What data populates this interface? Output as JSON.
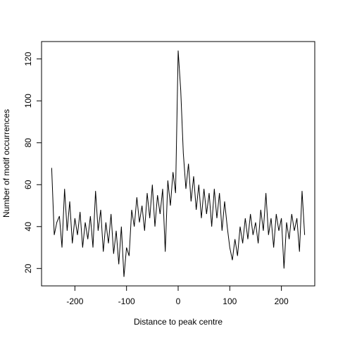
{
  "chart_data": {
    "type": "line",
    "x_label": "Distance to peak centre",
    "y_label": "Number of motif occurrences",
    "x": [
      -245,
      -240,
      -235,
      -230,
      -225,
      -220,
      -215,
      -210,
      -205,
      -200,
      -195,
      -190,
      -185,
      -180,
      -175,
      -170,
      -165,
      -160,
      -155,
      -150,
      -145,
      -140,
      -135,
      -130,
      -125,
      -120,
      -115,
      -110,
      -105,
      -100,
      -95,
      -90,
      -85,
      -80,
      -75,
      -70,
      -65,
      -60,
      -55,
      -50,
      -45,
      -40,
      -35,
      -30,
      -25,
      -20,
      -15,
      -10,
      -5,
      0,
      5,
      10,
      15,
      20,
      25,
      30,
      35,
      40,
      45,
      50,
      55,
      60,
      65,
      70,
      75,
      80,
      85,
      90,
      95,
      100,
      105,
      110,
      115,
      120,
      125,
      130,
      135,
      140,
      145,
      150,
      155,
      160,
      165,
      170,
      175,
      180,
      185,
      190,
      195,
      200,
      205,
      210,
      215,
      220,
      225,
      230,
      235,
      240,
      245
    ],
    "series": [
      {
        "color": "#000000",
        "values": [
          68,
          36,
          42,
          45,
          30,
          58,
          38,
          52,
          32,
          44,
          36,
          47,
          30,
          42,
          34,
          45,
          30,
          57,
          38,
          48,
          28,
          42,
          32,
          46,
          27,
          38,
          22,
          40,
          16,
          30,
          26,
          48,
          40,
          54,
          42,
          50,
          38,
          56,
          44,
          60,
          40,
          55,
          46,
          58,
          28,
          62,
          50,
          66,
          56,
          124,
          105,
          75,
          58,
          70,
          52,
          64,
          48,
          60,
          44,
          58,
          46,
          56,
          40,
          58,
          44,
          56,
          38,
          52,
          40,
          30,
          24,
          34,
          26,
          40,
          32,
          44,
          34,
          46,
          36,
          42,
          32,
          48,
          38,
          56,
          36,
          44,
          30,
          46,
          38,
          44,
          20,
          42,
          34,
          46,
          38,
          44,
          28,
          57,
          36
        ]
      }
    ],
    "xlim": [
      -264.6,
      264.6
    ],
    "xticks": [
      -200,
      -100,
      0,
      100,
      200
    ],
    "ylim": [
      11.7,
      128.3
    ],
    "yticks": [
      20,
      40,
      60,
      80,
      100,
      120
    ]
  }
}
